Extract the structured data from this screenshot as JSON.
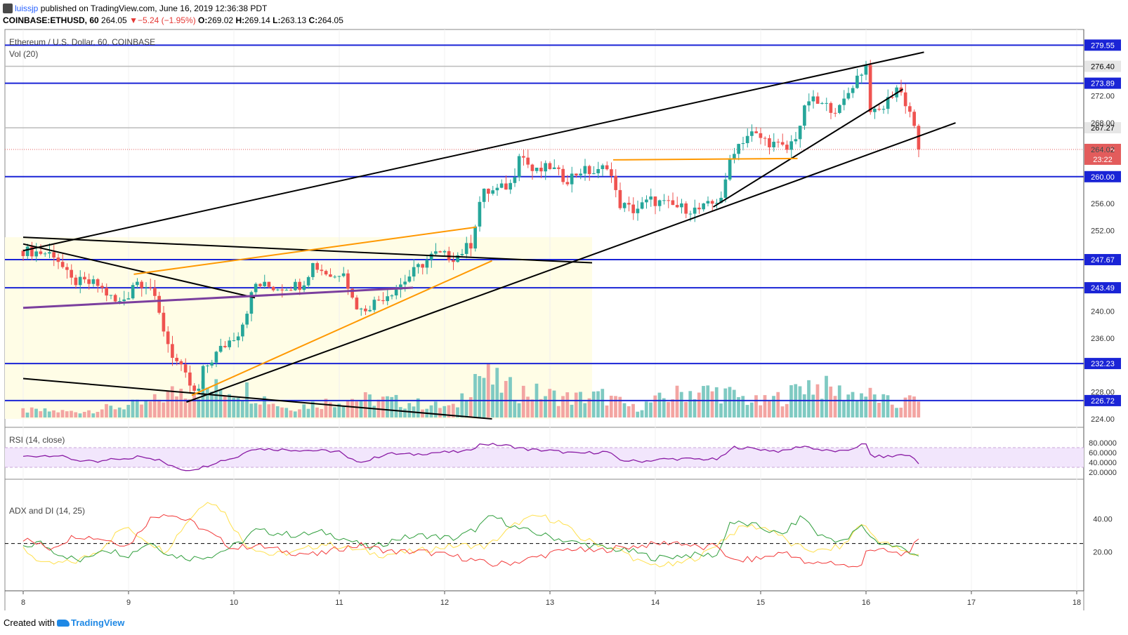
{
  "header": {
    "user": "luissjp",
    "published": "published on TradingView.com, June 16, 2019 12:36:38 PDT",
    "symbol": "COINBASE:ETHUSD, 60",
    "last": "264.05",
    "change": "−5.24 (−1.95%)",
    "open_label": "O:",
    "open": "269.02",
    "high_label": "H:",
    "high": "269.14",
    "low_label": "L:",
    "low": "263.13",
    "close_label": "C:",
    "close": "264.05"
  },
  "footer": {
    "created_with": "Created with",
    "brand": "TradingView"
  },
  "colors": {
    "up": "#26a69a",
    "down": "#ef5350",
    "up_vol": "#7fcac2",
    "down_vol": "#f3a5a2",
    "hline": "#1a24d6",
    "orange": "#ff9800",
    "purple": "#7b3f9e",
    "rsi_fill": "#f2e6fc",
    "rsi_line": "#8a1ca5",
    "adx": "#ffe04d",
    "di_plus": "#2e9e3b",
    "di_minus": "#f23a3a",
    "zone": "#fffde6",
    "price_tag": "#e35c5c"
  },
  "chart_data": {
    "type": "candlestick",
    "title": "Ethereum / U.S. Dollar, 60, COINBASE",
    "volume_label": "Vol (20)",
    "x_ticks": [
      "8",
      "9",
      "10",
      "11",
      "12",
      "13",
      "14",
      "15",
      "16",
      "17",
      "18"
    ],
    "price_axis": {
      "min": 224,
      "max": 280,
      "ticks": [
        "272.00",
        "268.00",
        "264.02",
        "256.00",
        "252.00",
        "240.00",
        "236.00",
        "228.00",
        "224.00"
      ]
    },
    "levels": [
      "279.55",
      "276.40",
      "273.89",
      "267.27",
      "260.00",
      "247.67",
      "243.49",
      "232.23",
      "226.72"
    ],
    "last_price_tag": "264.05",
    "countdown_tag": "23:22",
    "close_points": [
      [
        8.0,
        249.0
      ],
      [
        8.3,
        248.5
      ],
      [
        8.45,
        244.5
      ],
      [
        8.7,
        244.0
      ],
      [
        8.9,
        241.0
      ],
      [
        9.0,
        242.5
      ],
      [
        9.05,
        244.5
      ],
      [
        9.2,
        244.0
      ],
      [
        9.3,
        239.0
      ],
      [
        9.4,
        234.0
      ],
      [
        9.55,
        230.0
      ],
      [
        9.65,
        227.0
      ],
      [
        9.7,
        231.0
      ],
      [
        9.85,
        234.0
      ],
      [
        10.05,
        237.0
      ],
      [
        10.1,
        239.0
      ],
      [
        10.2,
        244.0
      ],
      [
        10.4,
        243.5
      ],
      [
        10.65,
        244.0
      ],
      [
        10.75,
        247.0
      ],
      [
        10.95,
        245.0
      ],
      [
        11.05,
        246.5
      ],
      [
        11.1,
        242.5
      ],
      [
        11.2,
        240.0
      ],
      [
        11.35,
        241.5
      ],
      [
        11.55,
        243.5
      ],
      [
        11.75,
        246.5
      ],
      [
        11.9,
        248.5
      ],
      [
        12.1,
        248.0
      ],
      [
        12.25,
        250.0
      ],
      [
        12.35,
        257.5
      ],
      [
        12.5,
        258.0
      ],
      [
        12.65,
        259.0
      ],
      [
        12.7,
        264.0
      ],
      [
        12.85,
        260.5
      ],
      [
        13.0,
        261.5
      ],
      [
        13.15,
        259.5
      ],
      [
        13.3,
        261.0
      ],
      [
        13.45,
        260.5
      ],
      [
        13.55,
        262.0
      ],
      [
        13.65,
        256.0
      ],
      [
        13.8,
        255.0
      ],
      [
        13.95,
        256.5
      ],
      [
        14.2,
        255.5
      ],
      [
        14.4,
        255.0
      ],
      [
        14.55,
        256.0
      ],
      [
        14.65,
        257.5
      ],
      [
        14.72,
        263.5
      ],
      [
        14.8,
        265.0
      ],
      [
        14.9,
        266.5
      ],
      [
        15.1,
        265.0
      ],
      [
        15.25,
        264.0
      ],
      [
        15.35,
        266.5
      ],
      [
        15.45,
        271.5
      ],
      [
        15.6,
        270.5
      ],
      [
        15.75,
        270.0
      ],
      [
        15.9,
        274.5
      ],
      [
        16.0,
        276.5
      ],
      [
        16.05,
        269.0
      ],
      [
        16.15,
        270.0
      ],
      [
        16.3,
        273.5
      ],
      [
        16.45,
        268.5
      ],
      [
        16.5,
        264.05
      ]
    ],
    "volume_points": [
      [
        8.0,
        0.15
      ],
      [
        8.5,
        0.12
      ],
      [
        9.2,
        0.3
      ],
      [
        9.5,
        0.6
      ],
      [
        10.1,
        0.6
      ],
      [
        10.5,
        0.2
      ],
      [
        11.1,
        0.4
      ],
      [
        11.5,
        0.35
      ],
      [
        12.1,
        0.2
      ],
      [
        12.3,
        0.95
      ],
      [
        12.6,
        0.6
      ],
      [
        13.2,
        0.4
      ],
      [
        13.5,
        0.45
      ],
      [
        13.8,
        0.2
      ],
      [
        14.3,
        0.55
      ],
      [
        14.6,
        0.55
      ],
      [
        15.0,
        0.3
      ],
      [
        15.3,
        0.5
      ],
      [
        15.4,
        0.75
      ],
      [
        15.8,
        0.5
      ],
      [
        16.0,
        0.5
      ],
      [
        16.3,
        0.25
      ],
      [
        16.5,
        0.45
      ]
    ],
    "trendlines": [
      {
        "color": "black",
        "from": [
          8.0,
          249.0
        ],
        "to": [
          16.55,
          278.5
        ]
      },
      {
        "color": "black",
        "from": [
          9.55,
          226.5
        ],
        "to": [
          16.85,
          268.0
        ]
      },
      {
        "color": "black",
        "from": [
          8.0,
          251.0
        ],
        "to": [
          13.4,
          247.2
        ]
      },
      {
        "color": "black",
        "from": [
          8.0,
          230.0
        ],
        "to": [
          12.45,
          224.0
        ]
      },
      {
        "color": "black",
        "from": [
          8.0,
          250.0
        ],
        "to": [
          10.2,
          242.0
        ]
      },
      {
        "color": "black",
        "from": [
          14.55,
          255.5
        ],
        "to": [
          16.35,
          273.0
        ]
      },
      {
        "color": "orange",
        "from": [
          9.05,
          245.5
        ],
        "to": [
          12.3,
          252.5
        ]
      },
      {
        "color": "orange",
        "from": [
          9.6,
          227.5
        ],
        "to": [
          12.45,
          247.5
        ]
      },
      {
        "color": "orange",
        "from": [
          13.6,
          262.5
        ],
        "to": [
          15.35,
          262.7
        ]
      },
      {
        "color": "purple",
        "from": [
          8.0,
          240.5
        ],
        "to": [
          11.7,
          243.5
        ]
      }
    ],
    "rsi": {
      "label": "RSI (14, close)",
      "ticks": [
        "80.0000",
        "60.0000",
        "40.0000",
        "20.0000"
      ],
      "band": [
        30,
        70
      ],
      "points": [
        [
          8.0,
          52
        ],
        [
          8.3,
          55
        ],
        [
          8.5,
          45
        ],
        [
          8.7,
          40
        ],
        [
          8.9,
          48
        ],
        [
          9.0,
          45
        ],
        [
          9.1,
          55
        ],
        [
          9.3,
          44
        ],
        [
          9.4,
          32
        ],
        [
          9.55,
          24
        ],
        [
          9.7,
          30
        ],
        [
          9.85,
          42
        ],
        [
          10.05,
          52
        ],
        [
          10.15,
          68
        ],
        [
          10.5,
          66
        ],
        [
          10.8,
          64
        ],
        [
          11.0,
          62
        ],
        [
          11.1,
          45
        ],
        [
          11.25,
          42
        ],
        [
          11.45,
          58
        ],
        [
          11.7,
          56
        ],
        [
          11.9,
          60
        ],
        [
          12.2,
          62
        ],
        [
          12.35,
          78
        ],
        [
          12.6,
          74
        ],
        [
          12.8,
          66
        ],
        [
          13.0,
          64
        ],
        [
          13.25,
          58
        ],
        [
          13.55,
          62
        ],
        [
          13.65,
          45
        ],
        [
          13.85,
          42
        ],
        [
          14.1,
          47
        ],
        [
          14.35,
          47
        ],
        [
          14.6,
          46
        ],
        [
          14.75,
          71
        ],
        [
          14.95,
          68
        ],
        [
          15.2,
          62
        ],
        [
          15.4,
          74
        ],
        [
          15.6,
          64
        ],
        [
          15.8,
          62
        ],
        [
          15.95,
          76
        ],
        [
          16.0,
          76
        ],
        [
          16.05,
          52
        ],
        [
          16.25,
          52
        ],
        [
          16.35,
          57
        ],
        [
          16.45,
          50
        ],
        [
          16.5,
          37
        ]
      ]
    },
    "adx": {
      "label": "ADX and DI (14, 25)",
      "ticks": [
        "40.00",
        "20.00"
      ],
      "dashed_level": 25,
      "adx_points": [
        [
          8.0,
          22
        ],
        [
          8.2,
          12
        ],
        [
          8.5,
          14
        ],
        [
          8.7,
          20
        ],
        [
          8.95,
          35
        ],
        [
          9.1,
          30
        ],
        [
          9.35,
          20
        ],
        [
          9.55,
          38
        ],
        [
          9.75,
          52
        ],
        [
          9.9,
          45
        ],
        [
          10.1,
          25
        ],
        [
          10.35,
          18
        ],
        [
          10.6,
          20
        ],
        [
          10.85,
          25
        ],
        [
          11.1,
          22
        ],
        [
          11.4,
          18
        ],
        [
          11.7,
          20
        ],
        [
          12.0,
          23
        ],
        [
          12.2,
          24
        ],
        [
          12.4,
          23
        ],
        [
          12.7,
          38
        ],
        [
          12.9,
          42
        ],
        [
          13.1,
          38
        ],
        [
          13.3,
          28
        ],
        [
          13.5,
          24
        ],
        [
          13.7,
          20
        ],
        [
          13.9,
          12
        ],
        [
          14.2,
          12
        ],
        [
          14.45,
          18
        ],
        [
          14.65,
          28
        ],
        [
          14.85,
          36
        ],
        [
          15.1,
          34
        ],
        [
          15.3,
          24
        ],
        [
          15.55,
          20
        ],
        [
          15.8,
          24
        ],
        [
          15.95,
          38
        ],
        [
          16.1,
          28
        ],
        [
          16.35,
          20
        ],
        [
          16.5,
          18
        ]
      ],
      "di_plus_points": [
        [
          8.0,
          22
        ],
        [
          8.15,
          26
        ],
        [
          8.3,
          20
        ],
        [
          8.55,
          14
        ],
        [
          8.75,
          22
        ],
        [
          9.0,
          18
        ],
        [
          9.2,
          26
        ],
        [
          9.4,
          18
        ],
        [
          9.6,
          16
        ],
        [
          9.8,
          18
        ],
        [
          10.05,
          25
        ],
        [
          10.2,
          33
        ],
        [
          10.6,
          30
        ],
        [
          10.85,
          32
        ],
        [
          11.05,
          28
        ],
        [
          11.3,
          22
        ],
        [
          11.55,
          28
        ],
        [
          11.8,
          30
        ],
        [
          12.1,
          28
        ],
        [
          12.3,
          34
        ],
        [
          12.45,
          42
        ],
        [
          12.7,
          34
        ],
        [
          12.95,
          30
        ],
        [
          13.2,
          26
        ],
        [
          13.55,
          22
        ],
        [
          13.8,
          20
        ],
        [
          14.0,
          16
        ],
        [
          14.3,
          18
        ],
        [
          14.6,
          18
        ],
        [
          14.7,
          38
        ],
        [
          14.95,
          36
        ],
        [
          15.2,
          30
        ],
        [
          15.4,
          42
        ],
        [
          15.55,
          30
        ],
        [
          15.8,
          26
        ],
        [
          15.95,
          36
        ],
        [
          16.1,
          26
        ],
        [
          16.35,
          22
        ],
        [
          16.5,
          18
        ]
      ],
      "di_minus_points": [
        [
          8.0,
          28
        ],
        [
          8.25,
          22
        ],
        [
          8.5,
          30
        ],
        [
          8.75,
          28
        ],
        [
          9.0,
          24
        ],
        [
          9.2,
          40
        ],
        [
          9.35,
          44
        ],
        [
          9.6,
          38
        ],
        [
          9.8,
          30
        ],
        [
          10.0,
          22
        ],
        [
          10.2,
          24
        ],
        [
          10.5,
          20
        ],
        [
          10.8,
          18
        ],
        [
          11.0,
          22
        ],
        [
          11.2,
          24
        ],
        [
          11.5,
          20
        ],
        [
          11.8,
          20
        ],
        [
          12.0,
          18
        ],
        [
          12.2,
          16
        ],
        [
          12.45,
          12
        ],
        [
          12.7,
          14
        ],
        [
          12.95,
          18
        ],
        [
          13.2,
          22
        ],
        [
          13.4,
          20
        ],
        [
          13.6,
          22
        ],
        [
          13.9,
          24
        ],
        [
          14.2,
          26
        ],
        [
          14.45,
          22
        ],
        [
          14.6,
          24
        ],
        [
          14.72,
          14
        ],
        [
          15.0,
          16
        ],
        [
          15.25,
          20
        ],
        [
          15.45,
          12
        ],
        [
          15.65,
          14
        ],
        [
          15.9,
          10
        ],
        [
          15.95,
          10
        ],
        [
          16.0,
          22
        ],
        [
          16.2,
          20
        ],
        [
          16.35,
          18
        ],
        [
          16.5,
          26
        ]
      ]
    }
  }
}
